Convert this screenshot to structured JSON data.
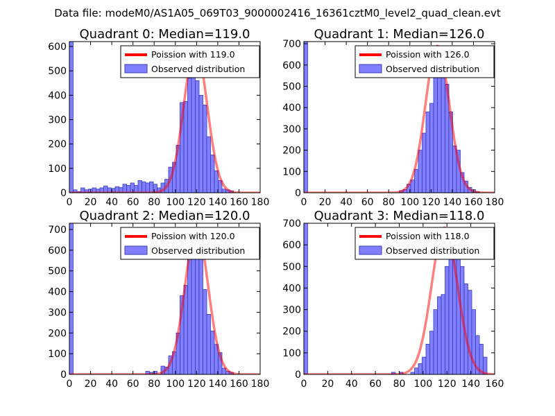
{
  "figure": {
    "suptitle": "Data file: modeM0/AS1A05_069T03_9000002416_16361cztM0_level2_quad_clean.evt"
  },
  "colors": {
    "bar_fill": "#7f7fff",
    "bar_edge": "#3b3bb8",
    "fit_line": "#ff0000",
    "axis": "#000000"
  },
  "chart_data": [
    {
      "type": "bar",
      "title": "Quadrant 0: Median=119.0",
      "legend": {
        "fit_label": "Poission with 119.0",
        "hist_label": "Observed distribution",
        "loc": "upper right"
      },
      "xlim": [
        0,
        180
      ],
      "ylim": [
        0,
        620
      ],
      "xticks": [
        0,
        20,
        40,
        60,
        80,
        100,
        120,
        140,
        160,
        180
      ],
      "yticks": [
        0,
        100,
        200,
        300,
        400,
        500,
        600
      ],
      "bin_width": 3.6,
      "x": [
        0,
        3.6,
        7.2,
        10.8,
        14.4,
        18,
        21.6,
        25.2,
        28.8,
        32.4,
        36,
        39.6,
        43.2,
        46.8,
        50.4,
        54,
        57.6,
        61.2,
        64.8,
        68.4,
        72,
        75.6,
        79.2,
        82.8,
        86.4,
        90,
        93.6,
        97.2,
        100.8,
        104.4,
        108,
        111.6,
        115.2,
        118.8,
        122.4,
        126,
        129.6,
        133.2,
        136.8,
        140.4,
        144,
        147.6,
        151.2,
        154.8
      ],
      "values": [
        620,
        12,
        5,
        20,
        12,
        15,
        20,
        15,
        20,
        28,
        20,
        18,
        25,
        22,
        35,
        30,
        40,
        30,
        50,
        45,
        40,
        45,
        35,
        20,
        40,
        55,
        105,
        125,
        195,
        370,
        375,
        470,
        580,
        460,
        400,
        360,
        230,
        155,
        90,
        50,
        15,
        12,
        8,
        0
      ],
      "fit": {
        "mean": 119.0,
        "sigma": 10.9,
        "peak": 600
      }
    },
    {
      "type": "bar",
      "title": "Quadrant 1: Median=126.0",
      "legend": {
        "fit_label": "Poission with 126.0",
        "hist_label": "Observed distribution",
        "loc": "upper right"
      },
      "xlim": [
        0,
        180
      ],
      "ylim": [
        0,
        710
      ],
      "xticks": [
        0,
        20,
        40,
        60,
        80,
        100,
        120,
        140,
        160,
        180
      ],
      "yticks": [
        0,
        100,
        200,
        300,
        400,
        500,
        600,
        700
      ],
      "bin_width": 3.6,
      "x": [
        0,
        3.6,
        7.2,
        10.8,
        14.4,
        18,
        21.6,
        25.2,
        28.8,
        32.4,
        36,
        39.6,
        43.2,
        46.8,
        50.4,
        54,
        57.6,
        61.2,
        64.8,
        68.4,
        72,
        75.6,
        79.2,
        82.8,
        86.4,
        90,
        93.6,
        97.2,
        100.8,
        104.4,
        108,
        111.6,
        115.2,
        118.8,
        122.4,
        126,
        129.6,
        133.2,
        136.8,
        140.4,
        144,
        147.6,
        151.2,
        154.8,
        158.4,
        162,
        165.6
      ],
      "values": [
        710,
        0,
        0,
        0,
        0,
        0,
        0,
        0,
        0,
        0,
        0,
        0,
        0,
        0,
        0,
        0,
        0,
        0,
        0,
        0,
        0,
        0,
        0,
        0,
        0,
        10,
        15,
        40,
        60,
        110,
        200,
        280,
        380,
        420,
        560,
        690,
        540,
        510,
        380,
        220,
        200,
        95,
        55,
        25,
        15,
        5,
        0
      ],
      "fit": {
        "mean": 126.0,
        "sigma": 11.2,
        "peak": 690
      }
    },
    {
      "type": "bar",
      "title": "Quadrant 2: Median=120.0",
      "legend": {
        "fit_label": "Poission with 120.0",
        "hist_label": "Observed distribution",
        "loc": "upper right"
      },
      "xlim": [
        0,
        180
      ],
      "ylim": [
        0,
        730
      ],
      "xticks": [
        0,
        20,
        40,
        60,
        80,
        100,
        120,
        140,
        160,
        180
      ],
      "yticks": [
        0,
        100,
        200,
        300,
        400,
        500,
        600,
        700
      ],
      "bin_width": 3.6,
      "x": [
        0,
        3.6,
        7.2,
        10.8,
        14.4,
        18,
        21.6,
        25.2,
        28.8,
        32.4,
        36,
        39.6,
        43.2,
        46.8,
        50.4,
        54,
        57.6,
        61.2,
        64.8,
        68.4,
        72,
        75.6,
        79.2,
        82.8,
        86.4,
        90,
        93.6,
        97.2,
        100.8,
        104.4,
        108,
        111.6,
        115.2,
        118.8,
        122.4,
        126,
        129.6,
        133.2,
        136.8,
        140.4,
        144,
        147.6,
        151.2,
        154.8
      ],
      "values": [
        730,
        0,
        0,
        0,
        0,
        0,
        0,
        0,
        0,
        0,
        0,
        0,
        0,
        0,
        0,
        0,
        0,
        0,
        0,
        0,
        15,
        10,
        15,
        0,
        40,
        35,
        90,
        110,
        200,
        380,
        430,
        560,
        650,
        610,
        560,
        410,
        290,
        210,
        145,
        105,
        30,
        15,
        10,
        0
      ],
      "fit": {
        "mean": 120.0,
        "sigma": 11.0,
        "peak": 700
      }
    },
    {
      "type": "bar",
      "title": "Quadrant 3: Median=118.0",
      "legend": {
        "fit_label": "Poission with 118.0",
        "hist_label": "Observed distribution",
        "loc": "upper right"
      },
      "xlim": [
        0,
        160
      ],
      "ylim": [
        0,
        700
      ],
      "xticks": [
        0,
        20,
        40,
        60,
        80,
        100,
        120,
        140,
        160
      ],
      "yticks": [
        0,
        100,
        200,
        300,
        400,
        500,
        600,
        700
      ],
      "bin_width": 3.2,
      "x": [
        0,
        3.2,
        6.4,
        9.6,
        12.8,
        16,
        19.2,
        22.4,
        25.6,
        28.8,
        32,
        35.2,
        38.4,
        41.6,
        44.8,
        48,
        51.2,
        54.4,
        57.6,
        60.8,
        64,
        67.2,
        70.4,
        73.6,
        76.8,
        80,
        83.2,
        86.4,
        89.6,
        92.8,
        96,
        99.2,
        102.4,
        105.6,
        108.8,
        112,
        115.2,
        118.4,
        121.6,
        124.8,
        128,
        131.2,
        134.4,
        137.6,
        140.8,
        144,
        147.2,
        150.4,
        153.6
      ],
      "values": [
        700,
        0,
        0,
        0,
        0,
        0,
        0,
        0,
        0,
        0,
        0,
        0,
        0,
        0,
        0,
        0,
        0,
        0,
        0,
        0,
        0,
        0,
        0,
        10,
        0,
        10,
        0,
        0,
        10,
        30,
        50,
        80,
        140,
        200,
        300,
        360,
        370,
        500,
        560,
        640,
        610,
        500,
        420,
        390,
        300,
        180,
        140,
        80,
        0
      ],
      "fit": {
        "mean": 118.0,
        "sigma": 10.9,
        "peak": 680
      }
    }
  ]
}
